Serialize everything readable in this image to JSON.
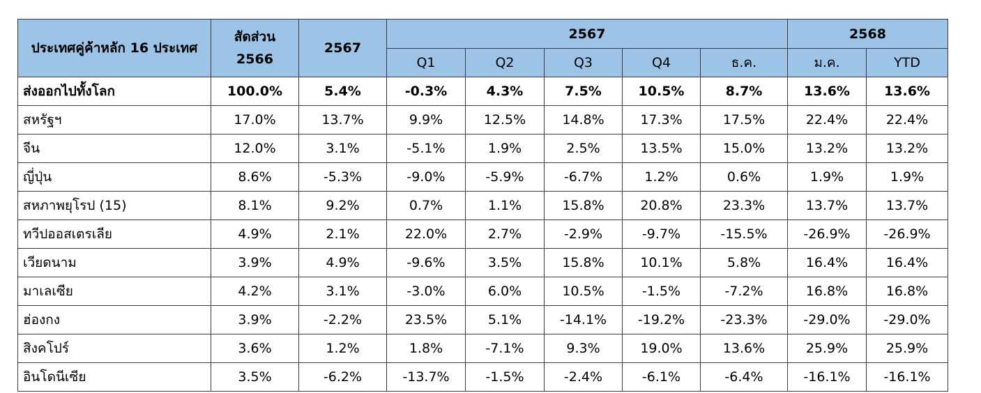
{
  "header": {
    "country_label": "ประเทศคู่ค้าหลัก 16 ประเทศ",
    "share_label": "สัดส่วน 2566",
    "year_2567": "2567",
    "group_2567": "2567",
    "group_2568": "2568",
    "sub_2567": [
      "Q1",
      "Q2",
      "Q3",
      "Q4",
      "ธ.ค."
    ],
    "sub_2568": [
      "ม.ค.",
      "YTD"
    ]
  },
  "rows": [
    {
      "name": "ส่งออกไปทั้งโลก",
      "share": "100.0%",
      "y2567": "5.4%",
      "q1": "-0.3%",
      "q2": "4.3%",
      "q3": "7.5%",
      "q4": "10.5%",
      "dec": "8.7%",
      "jan": "13.6%",
      "ytd": "13.6%"
    },
    {
      "name": "สหรัฐฯ",
      "share": "17.0%",
      "y2567": "13.7%",
      "q1": "9.9%",
      "q2": "12.5%",
      "q3": "14.8%",
      "q4": "17.3%",
      "dec": "17.5%",
      "jan": "22.4%",
      "ytd": "22.4%"
    },
    {
      "name": "จีน",
      "share": "12.0%",
      "y2567": "3.1%",
      "q1": "-5.1%",
      "q2": "1.9%",
      "q3": "2.5%",
      "q4": "13.5%",
      "dec": "15.0%",
      "jan": "13.2%",
      "ytd": "13.2%"
    },
    {
      "name": "ญี่ปุ่น",
      "share": "8.6%",
      "y2567": "-5.3%",
      "q1": "-9.0%",
      "q2": "-5.9%",
      "q3": "-6.7%",
      "q4": "1.2%",
      "dec": "0.6%",
      "jan": "1.9%",
      "ytd": "1.9%"
    },
    {
      "name": "สหภาพยุโรป (15)",
      "share": "8.1%",
      "y2567": "9.2%",
      "q1": "0.7%",
      "q2": "1.1%",
      "q3": "15.8%",
      "q4": "20.8%",
      "dec": "23.3%",
      "jan": "13.7%",
      "ytd": "13.7%"
    },
    {
      "name": "ทวีปออสเตรเลีย",
      "share": "4.9%",
      "y2567": "2.1%",
      "q1": "22.0%",
      "q2": "2.7%",
      "q3": "-2.9%",
      "q4": "-9.7%",
      "dec": "-15.5%",
      "jan": "-26.9%",
      "ytd": "-26.9%"
    },
    {
      "name": "เวียดนาม",
      "share": "3.9%",
      "y2567": "4.9%",
      "q1": "-9.6%",
      "q2": "3.5%",
      "q3": "15.8%",
      "q4": "10.1%",
      "dec": "5.8%",
      "jan": "16.4%",
      "ytd": "16.4%"
    },
    {
      "name": "มาเลเซีย",
      "share": "4.2%",
      "y2567": "3.1%",
      "q1": "-3.0%",
      "q2": "6.0%",
      "q3": "10.5%",
      "q4": "-1.5%",
      "dec": "-7.2%",
      "jan": "16.8%",
      "ytd": "16.8%"
    },
    {
      "name": "ฮ่องกง",
      "share": "3.9%",
      "y2567": "-2.2%",
      "q1": "23.5%",
      "q2": "5.1%",
      "q3": "-14.1%",
      "q4": "-19.2%",
      "dec": "-23.3%",
      "jan": "-29.0%",
      "ytd": "-29.0%"
    },
    {
      "name": "สิงคโปร์",
      "share": "3.6%",
      "y2567": "1.2%",
      "q1": "1.8%",
      "q2": "-7.1%",
      "q3": "9.3%",
      "q4": "19.0%",
      "dec": "13.6%",
      "jan": "25.9%",
      "ytd": "25.9%"
    },
    {
      "name": "อินโดนีเซีย",
      "share": "3.5%",
      "y2567": "-6.2%",
      "q1": "-13.7%",
      "q2": "-1.5%",
      "q3": "-2.4%",
      "q4": "-6.1%",
      "dec": "-6.4%",
      "jan": "-16.1%",
      "ytd": "-16.1%"
    }
  ],
  "colors": {
    "header_bg": "#9dc3e6",
    "border": "#3a3a3a"
  }
}
